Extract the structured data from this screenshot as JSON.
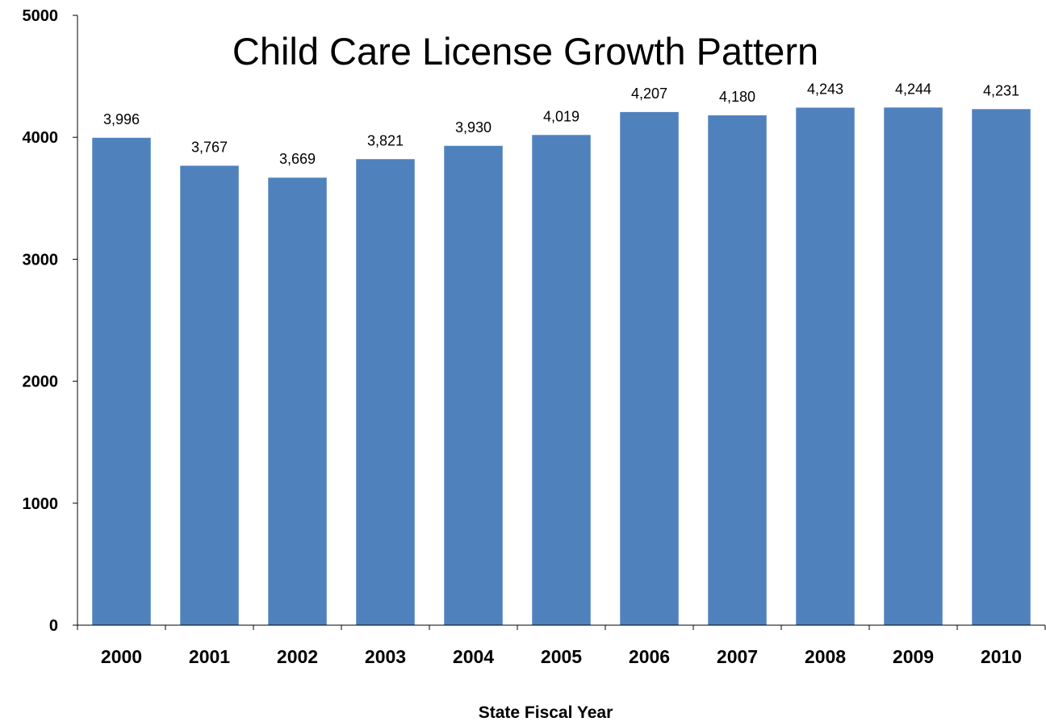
{
  "chart_data": {
    "type": "bar",
    "title": "Child Care License Growth Pattern",
    "xlabel": "State Fiscal Year",
    "ylabel": "",
    "categories": [
      "2000",
      "2001",
      "2002",
      "2003",
      "2004",
      "2005",
      "2006",
      "2007",
      "2008",
      "2009",
      "2010"
    ],
    "values": [
      3996,
      3767,
      3669,
      3821,
      3930,
      4019,
      4207,
      4180,
      4243,
      4244,
      4231
    ],
    "data_labels": [
      "3,996",
      "3,767",
      "3,669",
      "3,821",
      "3,930",
      "4,019",
      "4,207",
      "4,180",
      "4,243",
      "4,244",
      "4,231"
    ],
    "ylim": [
      0,
      5000
    ],
    "yticks": [
      "0",
      "1000",
      "2000",
      "3000",
      "4000",
      "5000"
    ],
    "ytick_values": [
      0,
      1000,
      2000,
      3000,
      4000,
      5000
    ],
    "bar_color": "#4F81BD",
    "grid": false,
    "legend": "none"
  }
}
